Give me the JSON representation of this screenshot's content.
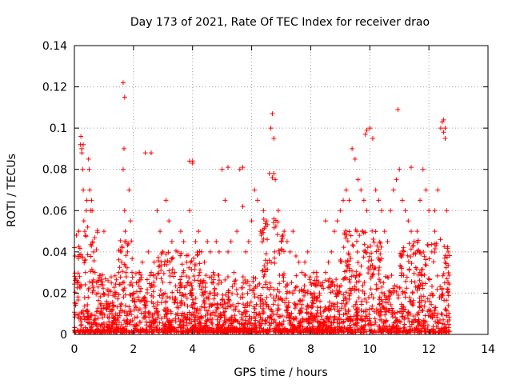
{
  "chart_data": {
    "type": "scatter",
    "title": "Day 173 of 2021, Rate Of TEC Index for receiver drao",
    "xlabel": "GPS time / hours",
    "ylabel": "ROTI / TECUs",
    "xlim": [
      0,
      14
    ],
    "ylim": [
      0,
      0.14
    ],
    "x_ticks": [
      "0",
      "2",
      "4",
      "6",
      "8",
      "10",
      "12",
      "14"
    ],
    "y_ticks": [
      "0",
      "0.02",
      "0.04",
      "0.06",
      "0.08",
      "0.1",
      "0.12",
      "0.14"
    ],
    "grid": true,
    "marker": "+",
    "color": "#ff0000",
    "series": [
      {
        "x": [
          0.02,
          0.05,
          0.1,
          0.15,
          0.2,
          0.22,
          0.25,
          0.28,
          0.3,
          0.32,
          0.35,
          0.38,
          0.4,
          0.42,
          0.45,
          0.48,
          0.5,
          0.52,
          0.55,
          0.58,
          0.6,
          0.62,
          0.65,
          0.7,
          0.75,
          0.8,
          0.9,
          1.0,
          1.1,
          1.2,
          1.3,
          1.4,
          1.5,
          1.6,
          1.65,
          1.68,
          1.7,
          1.72,
          1.75,
          1.8,
          1.85,
          1.9,
          1.95,
          2.0,
          2.1,
          2.2,
          2.3,
          2.4,
          2.5,
          2.6,
          2.7,
          2.8,
          2.9,
          3.0,
          3.1,
          3.2,
          3.3,
          3.4,
          3.5,
          3.6,
          3.7,
          3.8,
          3.9,
          4.0,
          4.1,
          4.2,
          4.3,
          4.4,
          4.5,
          4.6,
          4.7,
          4.8,
          4.9,
          5.0,
          5.1,
          5.2,
          5.3,
          5.4,
          5.5,
          5.6,
          5.7,
          5.8,
          5.9,
          6.0,
          6.1,
          6.2,
          6.3,
          6.4,
          6.5,
          6.6,
          6.65,
          6.7,
          6.75,
          6.8,
          6.9,
          7.0,
          7.1,
          7.2,
          7.3,
          7.4,
          7.5,
          7.6,
          7.7,
          7.8,
          7.9,
          8.0,
          8.1,
          8.2,
          8.3,
          8.4,
          8.5,
          8.6,
          8.7,
          8.8,
          8.9,
          9.0,
          9.1,
          9.2,
          9.3,
          9.4,
          9.5,
          9.6,
          9.7,
          9.8,
          9.9,
          10.0,
          10.1,
          10.2,
          10.3,
          10.4,
          10.5,
          10.6,
          10.7,
          10.8,
          10.9,
          11.0,
          11.1,
          11.2,
          11.3,
          11.4,
          11.5,
          11.6,
          11.7,
          11.8,
          11.9,
          12.0,
          12.1,
          12.2,
          12.3,
          12.4,
          12.45,
          12.5,
          12.55,
          12.6,
          12.65,
          1.65,
          1.7,
          0.25,
          0.3,
          6.75,
          6.7,
          9.85,
          9.9,
          12.5,
          12.55,
          10.95,
          2.6,
          3.9,
          5.2,
          5.7,
          4.0,
          8.5,
          12.2,
          11.4
        ],
        "y": [
          0.038,
          0.015,
          0.025,
          0.05,
          0.092,
          0.096,
          0.088,
          0.08,
          0.07,
          0.055,
          0.05,
          0.048,
          0.06,
          0.065,
          0.052,
          0.085,
          0.08,
          0.07,
          0.06,
          0.065,
          0.06,
          0.045,
          0.04,
          0.03,
          0.025,
          0.02,
          0.015,
          0.05,
          0.012,
          0.01,
          0.012,
          0.01,
          0.03,
          0.035,
          0.08,
          0.09,
          0.06,
          0.05,
          0.045,
          0.04,
          0.07,
          0.055,
          0.03,
          0.02,
          0.025,
          0.03,
          0.035,
          0.088,
          0.04,
          0.03,
          0.035,
          0.06,
          0.05,
          0.04,
          0.065,
          0.055,
          0.045,
          0.03,
          0.04,
          0.05,
          0.045,
          0.035,
          0.06,
          0.083,
          0.045,
          0.05,
          0.04,
          0.035,
          0.045,
          0.04,
          0.03,
          0.045,
          0.04,
          0.08,
          0.065,
          0.04,
          0.045,
          0.03,
          0.05,
          0.08,
          0.062,
          0.04,
          0.045,
          0.055,
          0.07,
          0.065,
          0.05,
          0.06,
          0.055,
          0.078,
          0.1,
          0.107,
          0.095,
          0.075,
          0.06,
          0.045,
          0.05,
          0.045,
          0.04,
          0.05,
          0.038,
          0.035,
          0.03,
          0.035,
          0.04,
          0.025,
          0.03,
          0.03,
          0.02,
          0.025,
          0.03,
          0.035,
          0.04,
          0.05,
          0.055,
          0.06,
          0.065,
          0.07,
          0.065,
          0.09,
          0.085,
          0.075,
          0.07,
          0.065,
          0.06,
          0.1,
          0.095,
          0.07,
          0.065,
          0.06,
          0.05,
          0.045,
          0.06,
          0.07,
          0.075,
          0.08,
          0.065,
          0.06,
          0.055,
          0.05,
          0.045,
          0.05,
          0.065,
          0.08,
          0.07,
          0.06,
          0.04,
          0.05,
          0.07,
          0.1,
          0.103,
          0.098,
          0.095,
          0.06,
          0.04,
          0.122,
          0.115,
          0.09,
          0.092,
          0.078,
          0.076,
          0.097,
          0.099,
          0.104,
          0.1,
          0.109,
          0.088,
          0.084,
          0.081,
          0.081,
          0.084,
          0.055,
          0.06,
          0.081
        ]
      }
    ]
  }
}
